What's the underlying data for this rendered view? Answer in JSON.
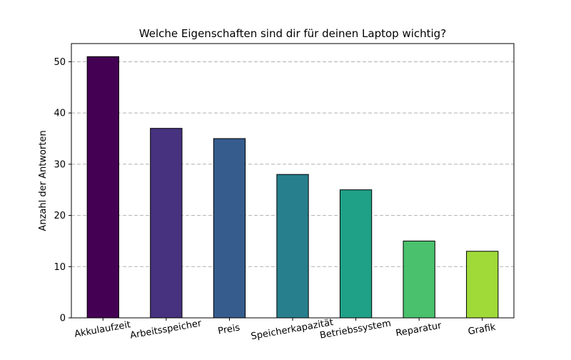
{
  "chart_data": {
    "type": "bar",
    "title": "Welche Eigenschaften sind dir für deinen Laptop wichtig?",
    "xlabel": "",
    "ylabel": "Anzahl der Antworten",
    "categories": [
      "Akkulaufzeit",
      "Arbeitsspeicher",
      "Preis",
      "Speicherkapazität",
      "Betriebssystem",
      "Reparatur",
      "Grafik"
    ],
    "values": [
      51,
      37,
      35,
      28,
      25,
      15,
      13
    ],
    "colors": [
      "#440154",
      "#46327e",
      "#365c8d",
      "#277f8e",
      "#1fa187",
      "#4ac16d",
      "#a0da39"
    ],
    "ylim": [
      0,
      53.55
    ],
    "yticks": [
      0,
      10,
      20,
      30,
      40,
      50
    ],
    "grid": {
      "axis": "y",
      "style": "dashed"
    },
    "legend": "none"
  }
}
